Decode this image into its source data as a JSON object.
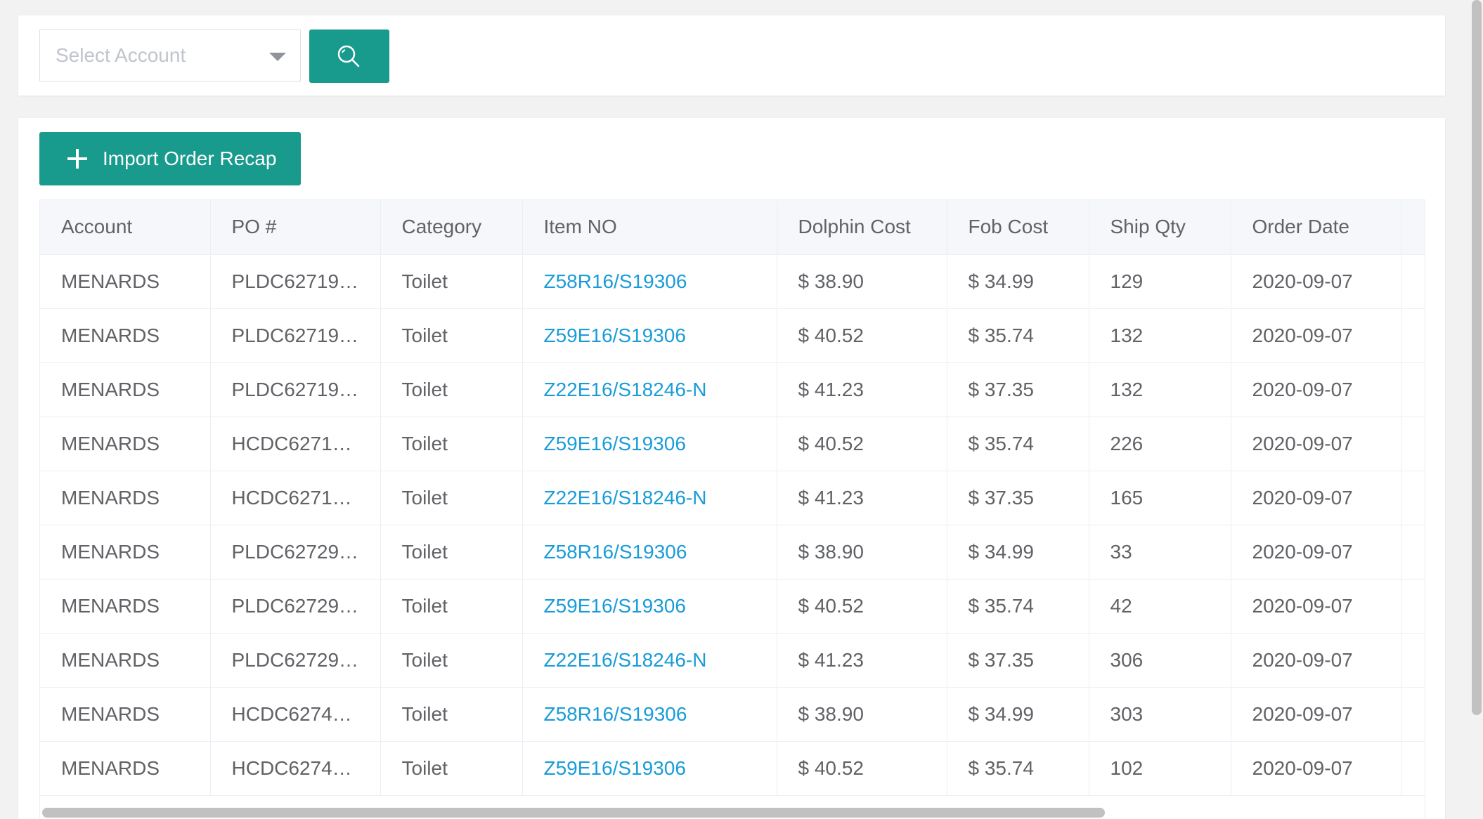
{
  "filter": {
    "account_placeholder": "Select Account",
    "search_icon": "search-icon"
  },
  "toolbar": {
    "import_label": "Import Order Recap",
    "import_icon": "plus-icon"
  },
  "table": {
    "columns": [
      "Account",
      "PO #",
      "Category",
      "Item NO",
      "Dolphin Cost",
      "Fob Cost",
      "Ship Qty",
      "Order Date"
    ],
    "rows": [
      {
        "account": "MENARDS",
        "po": "PLDC62719…",
        "category": "Toilet",
        "item": "Z58R16/S19306",
        "dolphin_cost": "$ 38.90",
        "fob_cost": "$ 34.99",
        "ship_qty": "129",
        "order_date": "2020-09-07"
      },
      {
        "account": "MENARDS",
        "po": "PLDC62719…",
        "category": "Toilet",
        "item": "Z59E16/S19306",
        "dolphin_cost": "$ 40.52",
        "fob_cost": "$ 35.74",
        "ship_qty": "132",
        "order_date": "2020-09-07"
      },
      {
        "account": "MENARDS",
        "po": "PLDC62719…",
        "category": "Toilet",
        "item": "Z22E16/S18246-N",
        "dolphin_cost": "$ 41.23",
        "fob_cost": "$ 37.35",
        "ship_qty": "132",
        "order_date": "2020-09-07"
      },
      {
        "account": "MENARDS",
        "po": "HCDC6271…",
        "category": "Toilet",
        "item": "Z59E16/S19306",
        "dolphin_cost": "$ 40.52",
        "fob_cost": "$ 35.74",
        "ship_qty": "226",
        "order_date": "2020-09-07"
      },
      {
        "account": "MENARDS",
        "po": "HCDC6271…",
        "category": "Toilet",
        "item": "Z22E16/S18246-N",
        "dolphin_cost": "$ 41.23",
        "fob_cost": "$ 37.35",
        "ship_qty": "165",
        "order_date": "2020-09-07"
      },
      {
        "account": "MENARDS",
        "po": "PLDC62729…",
        "category": "Toilet",
        "item": "Z58R16/S19306",
        "dolphin_cost": "$ 38.90",
        "fob_cost": "$ 34.99",
        "ship_qty": "33",
        "order_date": "2020-09-07"
      },
      {
        "account": "MENARDS",
        "po": "PLDC62729…",
        "category": "Toilet",
        "item": "Z59E16/S19306",
        "dolphin_cost": "$ 40.52",
        "fob_cost": "$ 35.74",
        "ship_qty": "42",
        "order_date": "2020-09-07"
      },
      {
        "account": "MENARDS",
        "po": "PLDC62729…",
        "category": "Toilet",
        "item": "Z22E16/S18246-N",
        "dolphin_cost": "$ 41.23",
        "fob_cost": "$ 37.35",
        "ship_qty": "306",
        "order_date": "2020-09-07"
      },
      {
        "account": "MENARDS",
        "po": "HCDC6274…",
        "category": "Toilet",
        "item": "Z58R16/S19306",
        "dolphin_cost": "$ 38.90",
        "fob_cost": "$ 34.99",
        "ship_qty": "303",
        "order_date": "2020-09-07"
      },
      {
        "account": "MENARDS",
        "po": "HCDC6274…",
        "category": "Toilet",
        "item": "Z59E16/S19306",
        "dolphin_cost": "$ 40.52",
        "fob_cost": "$ 35.74",
        "ship_qty": "102",
        "order_date": "2020-09-07"
      }
    ]
  },
  "colors": {
    "accent": "#189a8c",
    "link": "#1a9cd8",
    "header_bg": "#f5f7fa"
  }
}
